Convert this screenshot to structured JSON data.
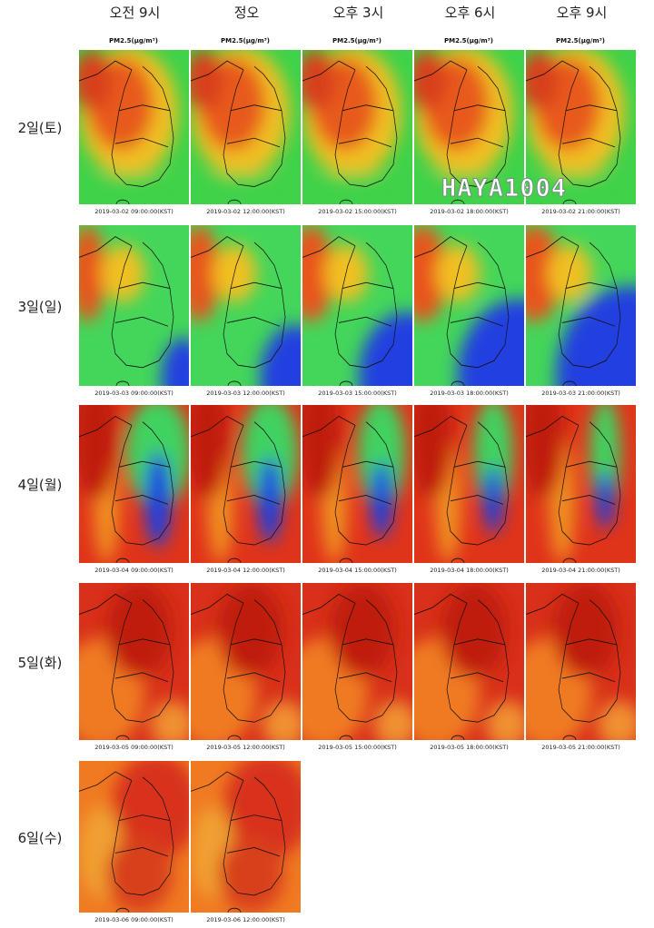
{
  "columns": [
    "오전 9시",
    "정오",
    "오후 3시",
    "오후 6시",
    "오후 9시"
  ],
  "rows": [
    {
      "label": "2일(토)",
      "unit_label": "PM2.5(μg/m³)",
      "captions": [
        "2019-03-02 09:00:00(KST)",
        "2019-03-02 12:00:00(KST)",
        "2019-03-02 15:00:00(KST)",
        "2019-03-02 18:00:00(KST)",
        "2019-03-02 21:00:00(KST)"
      ]
    },
    {
      "label": "3일(일)",
      "captions": [
        "2019-03-03 09:00:00(KST)",
        "2019-03-03 12:00:00(KST)",
        "2019-03-03 15:00:00(KST)",
        "2019-03-03 18:00:00(KST)",
        "2019-03-03 21:00:00(KST)"
      ]
    },
    {
      "label": "4일(월)",
      "captions": [
        "2019-03-04 09:00:00(KST)",
        "2019-03-04 12:00:00(KST)",
        "2019-03-04 15:00:00(KST)",
        "2019-03-04 18:00:00(KST)",
        "2019-03-04 21:00:00(KST)"
      ]
    },
    {
      "label": "5일(화)",
      "captions": [
        "2019-03-05 09:00:00(KST)",
        "2019-03-05 12:00:00(KST)",
        "2019-03-05 15:00:00(KST)",
        "2019-03-05 18:00:00(KST)",
        "2019-03-05 21:00:00(KST)"
      ]
    },
    {
      "label": "6일(수)",
      "captions": [
        "2019-03-06 09:00:00(KST)",
        "2019-03-06 12:00:00(KST)"
      ]
    }
  ],
  "watermark": "HAYA1004"
}
